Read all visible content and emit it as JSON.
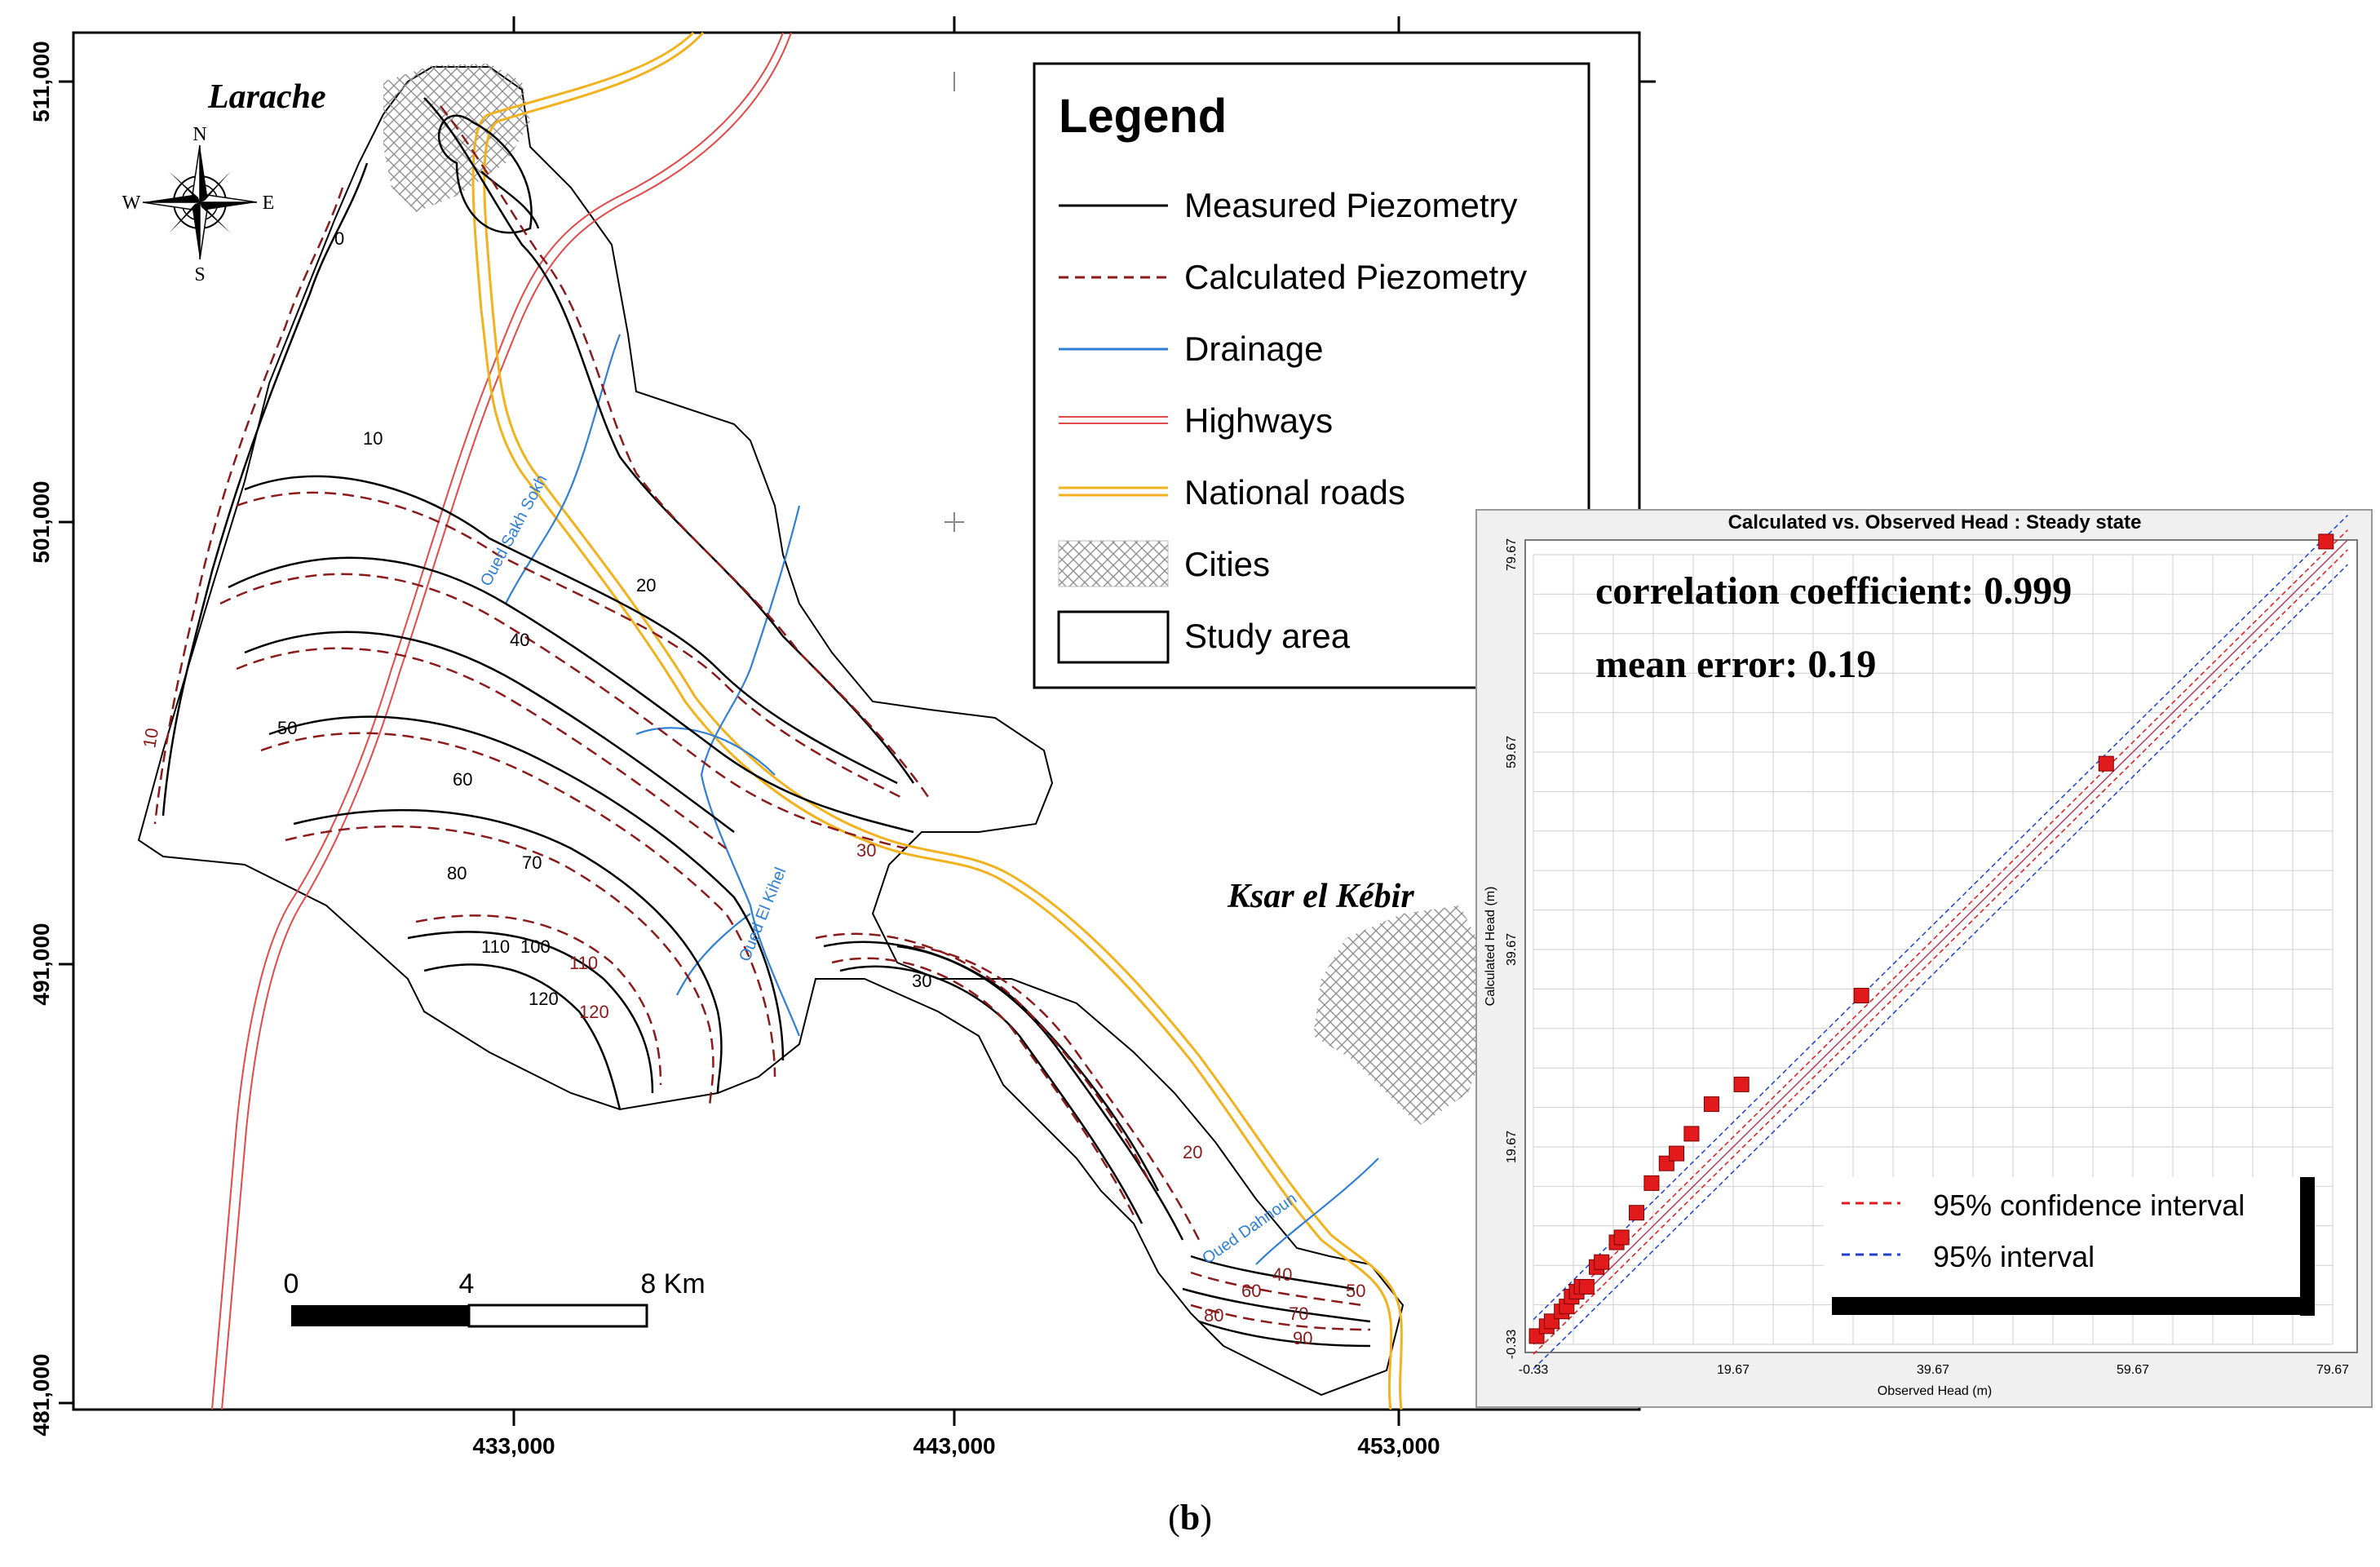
{
  "map": {
    "y_ticks": [
      "511,000",
      "501,000",
      "491,000",
      "481,000"
    ],
    "x_ticks": [
      "433,000",
      "443,000",
      "453,000"
    ],
    "city_labels": [
      "Larache",
      "Ksar el Kébir"
    ],
    "compass": {
      "n": "N",
      "s": "S",
      "e": "E",
      "w": "W"
    },
    "rivers": [
      "Oued Sakh Sokh",
      "Oued El Kihel",
      "Oued Dahnoun"
    ],
    "scale_bar": {
      "ticks": [
        "0",
        "4",
        "8 Km"
      ]
    },
    "measured_contour_labels": [
      "0",
      "10",
      "20",
      "30",
      "40",
      "50",
      "60",
      "70",
      "80",
      "100",
      "110",
      "120"
    ],
    "calculated_contour_labels": [
      "10",
      "20",
      "30",
      "40",
      "50",
      "60",
      "70",
      "80",
      "90",
      "110",
      "120"
    ]
  },
  "legend": {
    "title": "Legend",
    "items": [
      {
        "label": "Measured Piezometry",
        "color": "#000000",
        "style": "solid"
      },
      {
        "label": "Calculated Piezometry",
        "color": "#8b1a1a",
        "style": "dashed"
      },
      {
        "label": "Drainage",
        "color": "#2f7fd6",
        "style": "solid"
      },
      {
        "label": "Highways",
        "color": "#e24a4a",
        "style": "double"
      },
      {
        "label": "National roads",
        "color": "#f2b21d",
        "style": "double"
      },
      {
        "label": "Cities",
        "color": "#9a9a9a",
        "style": "hatch"
      },
      {
        "label": "Study area",
        "color": "#000000",
        "style": "box"
      }
    ]
  },
  "scatter_panel": {
    "title": "Calculated vs. Observed Head : Steady state",
    "stats": [
      "correlation coefficient: 0.999",
      "mean error: 0.19"
    ],
    "legend": [
      "95% confidence interval",
      "95% interval"
    ]
  },
  "chart_data": {
    "type": "scatter",
    "title": "Calculated vs. Observed Head : Steady state",
    "xlabel": "Observed Head (m)",
    "ylabel": "Calculated Head (m)",
    "xlim": [
      -0.33,
      79.67
    ],
    "ylim": [
      -0.33,
      79.67
    ],
    "x_ticks": [
      "-0.33",
      "19.67",
      "39.67",
      "59.67",
      "79.67"
    ],
    "y_ticks": [
      "-0.33",
      "19.67",
      "39.67",
      "59.67",
      "79.67"
    ],
    "grid": true,
    "series": [
      {
        "name": "",
        "color": "#e31a1c",
        "marker": "square",
        "points": [
          [
            0,
            0.5
          ],
          [
            1,
            1.5
          ],
          [
            1.5,
            2
          ],
          [
            2.5,
            3
          ],
          [
            3,
            3.5
          ],
          [
            3.5,
            4.5
          ],
          [
            4,
            5
          ],
          [
            4.5,
            5.5
          ],
          [
            5,
            5.5
          ],
          [
            6,
            7.5
          ],
          [
            6.5,
            8
          ],
          [
            8,
            10
          ],
          [
            8.5,
            10.5
          ],
          [
            10,
            13
          ],
          [
            11.5,
            16
          ],
          [
            13,
            18
          ],
          [
            14,
            19
          ],
          [
            15.5,
            21
          ],
          [
            17.5,
            24
          ],
          [
            20.5,
            26
          ],
          [
            32.5,
            35
          ],
          [
            57,
            58.5
          ],
          [
            79,
            81
          ]
        ]
      }
    ],
    "reference_lines": [
      "1:1",
      "95% confidence interval",
      "95% interval"
    ]
  },
  "caption": {
    "open": "(",
    "label": "b",
    "close": ")"
  }
}
